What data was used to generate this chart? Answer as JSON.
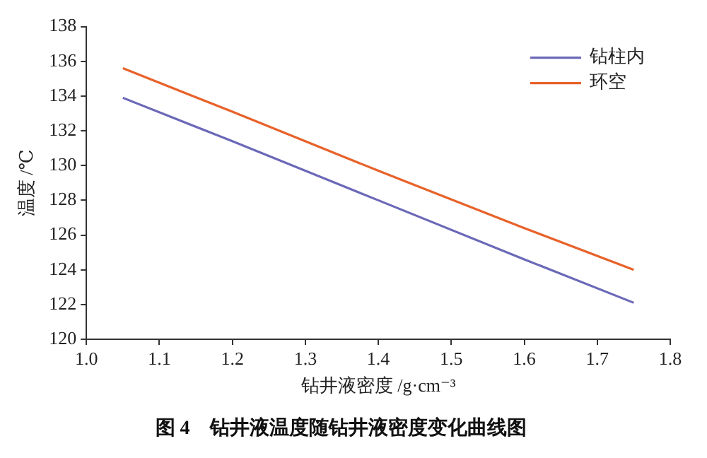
{
  "chart_data": {
    "type": "line",
    "title": "图 4　钻井液温度随钻井液密度变化曲线图",
    "xlabel": "钻井液密度 /g·cm⁻³",
    "ylabel": "温度 /℃",
    "series": [
      {
        "name": "钻柱内",
        "color": "#6b68b8",
        "x": [
          1.05,
          1.2,
          1.4,
          1.6,
          1.75
        ],
        "values": [
          133.9,
          131.4,
          128.0,
          124.6,
          122.1
        ]
      },
      {
        "name": "环空",
        "color": "#e8622a",
        "x": [
          1.05,
          1.2,
          1.4,
          1.6,
          1.75
        ],
        "values": [
          135.6,
          133.1,
          129.7,
          126.4,
          124.0
        ]
      }
    ],
    "xlim": [
      1.0,
      1.8
    ],
    "xticks": [
      {
        "value": 1.0,
        "label": "1.0"
      },
      1.1,
      1.2,
      1.3,
      1.4,
      1.5,
      1.6,
      1.7,
      1.8
    ],
    "ylim": [
      120,
      138
    ],
    "yticks": [
      120,
      122,
      124,
      126,
      128,
      130,
      132,
      134,
      136,
      138
    ],
    "grid": false,
    "legend": "top right",
    "marker": "none",
    "line_style": "solid"
  }
}
